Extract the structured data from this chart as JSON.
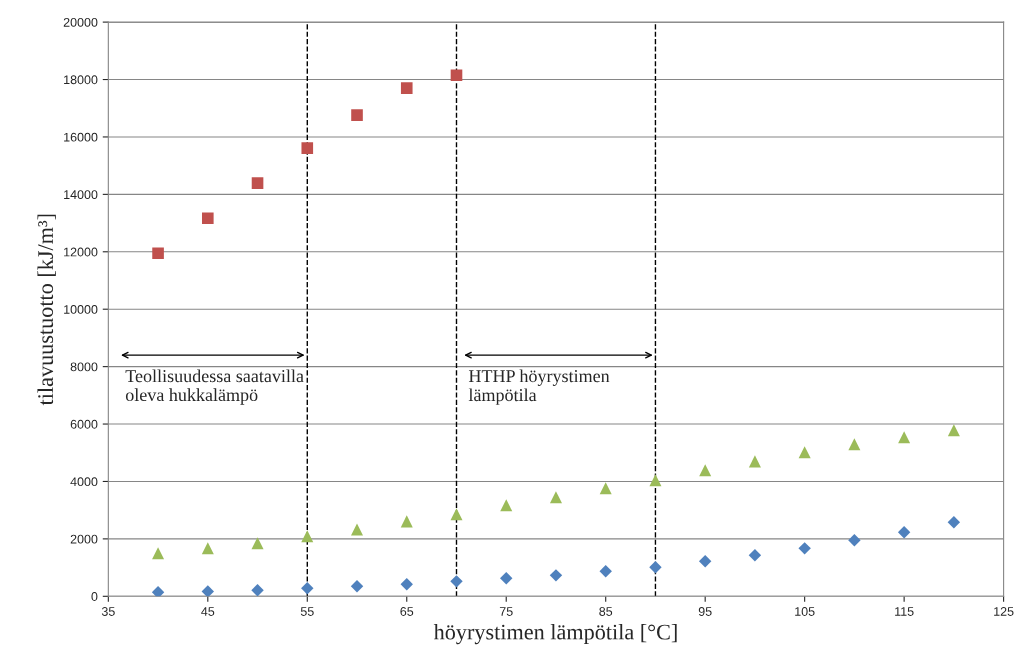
{
  "chart_data": {
    "type": "scatter",
    "xlabel": "höyrystimen lämpötila [°C]",
    "ylabel": "tilavuustuotto [kJ/m³]",
    "xlim": [
      35,
      125
    ],
    "xticks": [
      35,
      45,
      55,
      65,
      75,
      85,
      95,
      105,
      115,
      125
    ],
    "ylim": [
      0,
      20000
    ],
    "yticks": [
      0,
      2000,
      4000,
      6000,
      8000,
      10000,
      12000,
      14000,
      16000,
      18000,
      20000
    ],
    "grid": "y",
    "series": [
      {
        "color": "#c0504d",
        "marker": "square",
        "x": [
          40,
          45,
          50,
          55,
          60,
          65,
          70
        ],
        "values": [
          11950,
          13170,
          14390,
          15610,
          16760,
          17700,
          18150
        ]
      },
      {
        "color": "#9bbb59",
        "marker": "triangle",
        "x": [
          40,
          45,
          50,
          55,
          60,
          65,
          70,
          75,
          80,
          85,
          90,
          95,
          100,
          105,
          110,
          115,
          120
        ],
        "values": [
          1500,
          1670,
          1850,
          2090,
          2330,
          2610,
          2860,
          3170,
          3450,
          3760,
          4040,
          4390,
          4700,
          5020,
          5300,
          5540,
          5780
        ]
      },
      {
        "color": "#4f81bd",
        "marker": "diamond",
        "x": [
          40,
          45,
          50,
          55,
          60,
          65,
          70,
          75,
          80,
          85,
          90,
          95,
          100,
          105,
          110,
          115,
          120
        ],
        "values": [
          140,
          170,
          210,
          280,
          350,
          420,
          520,
          630,
          730,
          870,
          1010,
          1220,
          1430,
          1670,
          1950,
          2230,
          2580
        ]
      }
    ],
    "ref_lines": [
      {
        "axis": "x",
        "value": 55,
        "line_style": "dashed",
        "color": "#000000"
      },
      {
        "axis": "x",
        "value": 70,
        "line_style": "dashed",
        "color": "#000000"
      },
      {
        "axis": "x",
        "value": 90,
        "line_style": "dashed",
        "color": "#000000"
      }
    ],
    "annotations": [
      "Teollisuudessa saatavilla\noleva hukkalämpö",
      "HTHP höyrystimen\nlämpötila"
    ]
  }
}
